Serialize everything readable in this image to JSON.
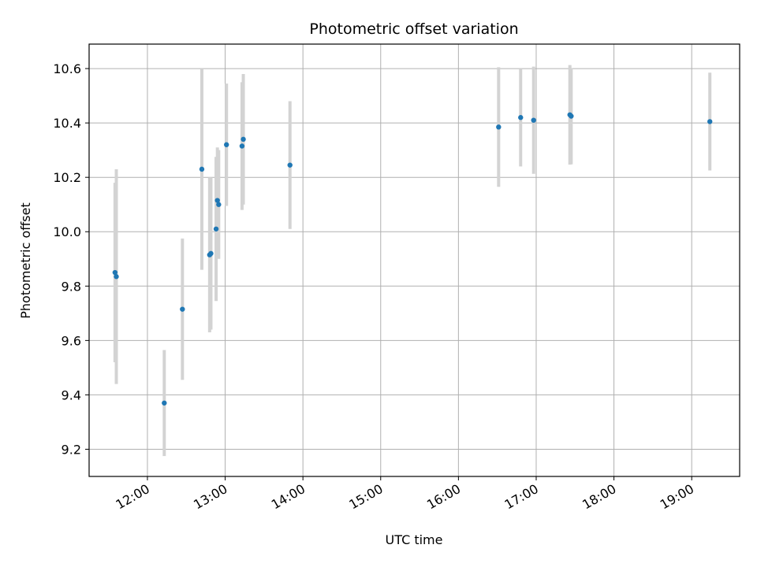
{
  "chart_data": {
    "type": "scatter",
    "title": "Photometric offset variation",
    "xlabel": "UTC time",
    "ylabel": "Photometric offset",
    "xlim": [
      "11:15",
      "19:37"
    ],
    "ylim": [
      9.1,
      10.69
    ],
    "xticks": [
      "12:00",
      "13:00",
      "14:00",
      "15:00",
      "16:00",
      "17:00",
      "18:00",
      "19:00"
    ],
    "yticks": [
      "9.2",
      "9.4",
      "9.6",
      "9.8",
      "10.0",
      "10.2",
      "10.4",
      "10.6"
    ],
    "grid": true,
    "marker_color": "#1f77b4",
    "errorbar_color": "#d3d3d3",
    "points": [
      {
        "x": "11:35",
        "y": 9.85,
        "err": 0.33
      },
      {
        "x": "11:36",
        "y": 9.835,
        "err": 0.395
      },
      {
        "x": "12:13",
        "y": 9.37,
        "err": 0.195
      },
      {
        "x": "12:27",
        "y": 9.715,
        "err": 0.26
      },
      {
        "x": "12:42",
        "y": 10.23,
        "err": 0.37
      },
      {
        "x": "12:48",
        "y": 9.915,
        "err": 0.285
      },
      {
        "x": "12:49",
        "y": 9.92,
        "err": 0.28
      },
      {
        "x": "12:53",
        "y": 10.01,
        "err": 0.265
      },
      {
        "x": "12:54",
        "y": 10.115,
        "err": 0.195
      },
      {
        "x": "12:55",
        "y": 10.1,
        "err": 0.2
      },
      {
        "x": "13:01",
        "y": 10.32,
        "err": 0.225
      },
      {
        "x": "13:13",
        "y": 10.315,
        "err": 0.235
      },
      {
        "x": "13:14",
        "y": 10.34,
        "err": 0.24
      },
      {
        "x": "13:50",
        "y": 10.245,
        "err": 0.235
      },
      {
        "x": "16:31",
        "y": 10.385,
        "err": 0.22
      },
      {
        "x": "16:48",
        "y": 10.42,
        "err": 0.18
      },
      {
        "x": "16:58",
        "y": 10.41,
        "err": 0.197
      },
      {
        "x": "17:26",
        "y": 10.43,
        "err": 0.183
      },
      {
        "x": "17:27",
        "y": 10.425,
        "err": 0.177
      },
      {
        "x": "19:14",
        "y": 10.405,
        "err": 0.18
      }
    ]
  }
}
